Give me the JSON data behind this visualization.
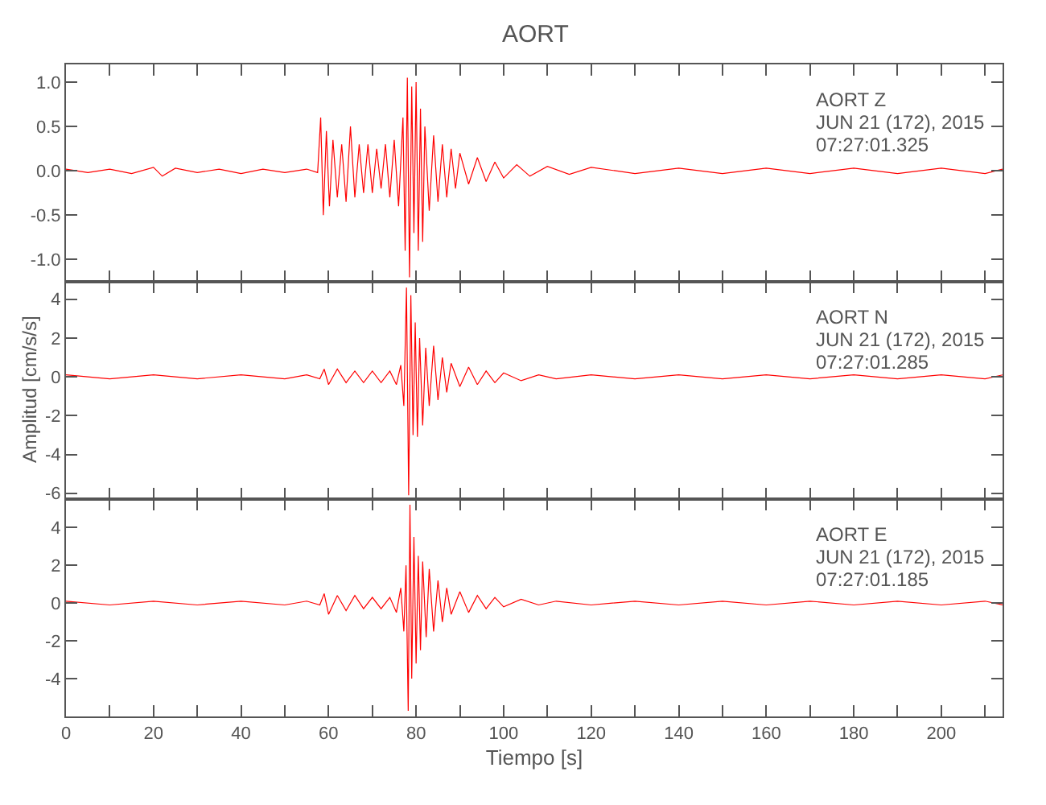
{
  "chart_data": [
    {
      "type": "line",
      "title": "AORT",
      "tick_labels": "y",
      "line_style": "solid",
      "marker": "none",
      "xlim": [
        0,
        214
      ],
      "ylim": [
        -1.25,
        1.2
      ],
      "xticks": [
        0,
        {
          "value": 10,
          "label": null
        },
        20,
        {
          "value": 30,
          "label": null
        },
        40,
        {
          "value": 50,
          "label": null
        },
        60,
        {
          "value": 70,
          "label": null
        },
        80,
        {
          "value": 90,
          "label": null
        },
        100,
        {
          "value": 110,
          "label": null
        },
        120,
        {
          "value": 130,
          "label": null
        },
        140,
        {
          "value": 150,
          "label": null
        },
        160,
        {
          "value": 170,
          "label": null
        },
        180,
        {
          "value": 190,
          "label": null
        },
        200,
        {
          "value": 210,
          "label": null
        }
      ],
      "yticks": [
        {
          "value": -1,
          "label": "-1.0"
        },
        {
          "value": -0.5,
          "label": "-0.5"
        },
        {
          "value": 0,
          "label": "0.0"
        },
        {
          "value": 0.5,
          "label": "0.5"
        },
        {
          "value": 1,
          "label": "1.0"
        }
      ],
      "annotations": [
        "AORT Z",
        "JUN 21 (172), 2015",
        "07:27:01.325"
      ],
      "x": [
        0,
        5,
        10,
        15,
        20,
        22,
        25,
        30,
        35,
        40,
        45,
        50,
        55,
        57.5,
        58.2,
        58.8,
        59.5,
        60.2,
        61,
        62,
        63,
        64,
        65,
        66,
        67,
        68,
        69,
        70,
        71,
        72,
        73,
        74,
        75,
        76,
        77,
        77.5,
        78,
        78.5,
        79,
        79.5,
        80,
        80.5,
        81,
        81.5,
        82,
        83,
        84,
        85,
        86,
        87,
        88,
        89,
        90,
        92,
        94,
        96,
        98,
        100,
        103,
        106,
        110,
        115,
        120,
        130,
        140,
        150,
        160,
        170,
        180,
        190,
        200,
        210,
        214
      ],
      "series": [
        {
          "color": "#ff0000",
          "values": [
            0.02,
            -0.02,
            0.02,
            -0.03,
            0.04,
            -0.06,
            0.03,
            -0.02,
            0.02,
            -0.03,
            0.02,
            -0.02,
            0.02,
            -0.02,
            0.6,
            -0.5,
            0.45,
            -0.4,
            0.35,
            -0.3,
            0.3,
            -0.35,
            0.5,
            -0.3,
            0.3,
            -0.25,
            0.3,
            -0.25,
            0.25,
            -0.2,
            0.3,
            -0.3,
            0.35,
            -0.4,
            0.6,
            -0.9,
            1.05,
            -1.2,
            0.95,
            -0.7,
            1.0,
            -0.9,
            0.7,
            -0.8,
            0.5,
            -0.45,
            0.4,
            -0.35,
            0.3,
            -0.3,
            0.25,
            -0.2,
            0.2,
            -0.15,
            0.15,
            -0.12,
            0.1,
            -0.08,
            0.07,
            -0.06,
            0.05,
            -0.04,
            0.04,
            -0.03,
            0.03,
            -0.03,
            0.03,
            -0.03,
            0.03,
            -0.03,
            0.03,
            -0.03,
            0.02
          ]
        }
      ]
    },
    {
      "type": "line",
      "ylabel": "Amplitud [cm/s/s]",
      "tick_labels": "y",
      "line_style": "solid",
      "marker": "none",
      "xlim": [
        0,
        214
      ],
      "ylim": [
        -6.3,
        4.9
      ],
      "xticks": [
        0,
        {
          "value": 10,
          "label": null
        },
        20,
        {
          "value": 30,
          "label": null
        },
        40,
        {
          "value": 50,
          "label": null
        },
        60,
        {
          "value": 70,
          "label": null
        },
        80,
        {
          "value": 90,
          "label": null
        },
        100,
        {
          "value": 110,
          "label": null
        },
        120,
        {
          "value": 130,
          "label": null
        },
        140,
        {
          "value": 150,
          "label": null
        },
        160,
        {
          "value": 170,
          "label": null
        },
        180,
        {
          "value": 190,
          "label": null
        },
        200,
        {
          "value": 210,
          "label": null
        }
      ],
      "yticks": [
        -6,
        -4,
        -2,
        0,
        2,
        4
      ],
      "annotations": [
        "AORT N",
        "JUN 21 (172), 2015",
        "07:27:01.285"
      ],
      "x": [
        0,
        10,
        20,
        30,
        40,
        50,
        55,
        58,
        59,
        60,
        62,
        64,
        66,
        68,
        70,
        72,
        74,
        75.5,
        76.5,
        77.2,
        77.8,
        78.3,
        78.8,
        79.3,
        79.8,
        80.3,
        80.8,
        81.5,
        82.2,
        83,
        84,
        85,
        86,
        87,
        88,
        90,
        92,
        94,
        96,
        98,
        100,
        104,
        108,
        112,
        120,
        130,
        140,
        150,
        160,
        170,
        180,
        190,
        200,
        210,
        214
      ],
      "series": [
        {
          "color": "#ff0000",
          "values": [
            0.1,
            -0.1,
            0.1,
            -0.1,
            0.1,
            -0.1,
            0.1,
            -0.1,
            0.4,
            -0.4,
            0.4,
            -0.3,
            0.3,
            -0.3,
            0.3,
            -0.3,
            0.3,
            -0.4,
            0.6,
            -1.5,
            4.6,
            -6.1,
            4.2,
            -3.0,
            2.8,
            -3.1,
            2.0,
            -2.5,
            1.5,
            -1.5,
            1.6,
            -1.2,
            1.0,
            -0.8,
            0.7,
            -0.5,
            0.5,
            -0.4,
            0.3,
            -0.3,
            0.2,
            -0.2,
            0.1,
            -0.1,
            0.1,
            -0.1,
            0.1,
            -0.1,
            0.1,
            -0.1,
            0.1,
            -0.1,
            0.1,
            -0.1,
            0.1
          ]
        }
      ]
    },
    {
      "type": "line",
      "xlabel": "Tiempo [s]",
      "line_style": "solid",
      "marker": "none",
      "xlim": [
        0,
        214
      ],
      "ylim": [
        -6,
        5.5
      ],
      "xticks": [
        0,
        {
          "value": 10,
          "label": null
        },
        20,
        {
          "value": 30,
          "label": null
        },
        40,
        {
          "value": 50,
          "label": null
        },
        60,
        {
          "value": 70,
          "label": null
        },
        80,
        {
          "value": 90,
          "label": null
        },
        100,
        {
          "value": 110,
          "label": null
        },
        120,
        {
          "value": 130,
          "label": null
        },
        140,
        {
          "value": 150,
          "label": null
        },
        160,
        {
          "value": 170,
          "label": null
        },
        180,
        {
          "value": 190,
          "label": null
        },
        200,
        {
          "value": 210,
          "label": null
        }
      ],
      "yticks": [
        -4,
        -2,
        0,
        2,
        4
      ],
      "annotations": [
        "AORT E",
        "JUN 21 (172), 2015",
        "07:27:01.185"
      ],
      "x": [
        0,
        10,
        20,
        30,
        40,
        50,
        55,
        58,
        59,
        60,
        62,
        64,
        66,
        68,
        70,
        72,
        74,
        75.5,
        76.5,
        77.2,
        77.7,
        78.2,
        78.6,
        79,
        79.5,
        80,
        80.5,
        81,
        81.5,
        82.3,
        83,
        84,
        85,
        86,
        87,
        88,
        90,
        92,
        94,
        96,
        98,
        100,
        104,
        108,
        112,
        120,
        130,
        140,
        150,
        160,
        170,
        180,
        190,
        200,
        210,
        214
      ],
      "series": [
        {
          "color": "#ff0000",
          "values": [
            0.1,
            -0.1,
            0.1,
            -0.1,
            0.1,
            -0.1,
            0.1,
            -0.1,
            0.5,
            -0.6,
            0.4,
            -0.4,
            0.4,
            -0.3,
            0.3,
            -0.3,
            0.3,
            -0.5,
            0.8,
            -1.5,
            2.0,
            -5.7,
            5.2,
            -4.0,
            3.5,
            -3.2,
            2.5,
            -2.5,
            2.2,
            -1.8,
            1.8,
            -1.5,
            1.2,
            -1.0,
            0.8,
            -0.6,
            0.6,
            -0.5,
            0.4,
            -0.3,
            0.3,
            -0.2,
            0.2,
            -0.1,
            0.1,
            -0.1,
            0.1,
            -0.1,
            0.1,
            -0.1,
            0.1,
            -0.1,
            0.1,
            -0.1,
            0.1,
            -0.1
          ]
        }
      ]
    }
  ]
}
